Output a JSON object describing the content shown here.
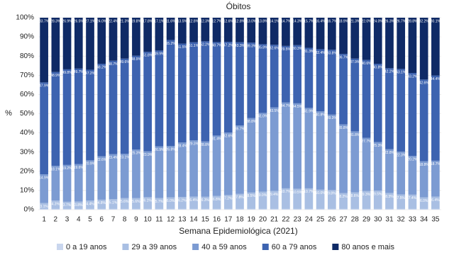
{
  "chart_data": {
    "type": "stacked_bar_100",
    "title": "Óbitos",
    "x_label": "Semana Epidemiológica (2021)",
    "y_label": "%",
    "categories": [
      "1",
      "2",
      "3",
      "4",
      "5",
      "6",
      "7",
      "8",
      "9",
      "10",
      "11",
      "12",
      "13",
      "14",
      "15",
      "16",
      "17",
      "18",
      "19",
      "20",
      "21",
      "22",
      "23",
      "24",
      "25",
      "26",
      "27",
      "28",
      "29",
      "30",
      "31",
      "32",
      "33",
      "34",
      "35"
    ],
    "ylim": [
      0,
      100
    ],
    "yticks": [
      {
        "value": 0,
        "label": "0%"
      },
      {
        "value": 10,
        "label": "10%"
      },
      {
        "value": 20,
        "label": "20%"
      },
      {
        "value": 30,
        "label": "30%"
      },
      {
        "value": 40,
        "label": "40%"
      },
      {
        "value": 50,
        "label": "50%"
      },
      {
        "value": 60,
        "label": "60%"
      },
      {
        "value": 70,
        "label": "70%"
      },
      {
        "value": 80,
        "label": "80%"
      },
      {
        "value": 90,
        "label": "90%"
      },
      {
        "value": 100,
        "label": "100%"
      }
    ],
    "series": [
      {
        "name": "0 a 19 anos",
        "color": "#c9d6ee",
        "values": [
          0.4,
          0.4,
          0.4,
          0.4,
          0.4,
          0.4,
          0.4,
          0.4,
          0.4,
          0.4,
          0.4,
          0.4,
          0.4,
          0.4,
          0.4,
          0.4,
          0.4,
          0.4,
          0.4,
          0.4,
          0.4,
          0.4,
          0.4,
          0.4,
          0.4,
          0.4,
          0.4,
          0.4,
          0.4,
          0.4,
          0.4,
          0.4,
          0.4,
          0.4,
          0.4
        ]
      },
      {
        "name": "29 a 39 anos",
        "color": "#a9bfe3",
        "values": [
          3.1,
          4.3,
          3.7,
          3.8,
          4.4,
          4.8,
          5.1,
          5.6,
          5.6,
          6.1,
          5.7,
          6.0,
          6.2,
          6.4,
          6.3,
          6.8,
          7.2,
          7.8,
          8.5,
          9.0,
          9.4,
          10.7,
          10.5,
          10.7,
          10.0,
          9.8,
          8.2,
          8.6,
          9.3,
          9.5,
          8.3,
          7.5,
          7.4,
          6.0,
          6.4
        ],
        "value_labels": [
          "3.1%",
          "4.3%",
          "3.7%",
          "3.8%",
          "4.4%",
          "4.8%",
          "5.1%",
          "5.6%",
          "5.6%",
          "6.1%",
          "5.7%",
          "6.0%",
          "6.2%",
          "6.4%",
          "6.3%",
          "6.8%",
          "7.2%",
          "7.8%",
          "8.5%",
          "9.0%",
          "9.4%",
          "10.7%",
          "10.5%",
          "10.7%",
          "10.0%",
          "9.8%",
          "8.2%",
          "8.6%",
          "9.3%",
          "9.5%",
          "8.3%",
          "7.5%",
          "7.4%",
          "6.0%",
          "6.4%"
        ]
      },
      {
        "name": "40 a 59 anos",
        "color": "#7c9bd2",
        "values": [
          14.9,
          18.1,
          19.2,
          19.6,
          20.9,
          22.6,
          23.4,
          23.1,
          25.3,
          23.9,
          26.9,
          26.8,
          28.4,
          29.3,
          28.8,
          31.4,
          32.6,
          35.7,
          38.8,
          41.0,
          43.5,
          44.7,
          44.5,
          41.9,
          40.8,
          39.3,
          35.8,
          31.8,
          27.7,
          25.3,
          22.8,
          22.3,
          20.2,
          18.8,
          18.7
        ],
        "value_labels": [
          "14.9%",
          "18.1%",
          "19.2%",
          "19.6%",
          "20.9%",
          "22.6%",
          "23.4%",
          "23.1%",
          "25.3%",
          "23.9%",
          "26.9%",
          "26.8%",
          "28.4%",
          "29.3%",
          "28.8%",
          "31.4%",
          "32.6%",
          "35.7%",
          "38.8%",
          "41.0%",
          "43.5%",
          "44.7%",
          "44.5%",
          "41.9%",
          "40.8%",
          "39.3%",
          "35.8%",
          "31.8%",
          "27.7%",
          "25.3%",
          "22.8%",
          "22.3%",
          "20.2%",
          "18.8%",
          "18.7%"
        ]
      },
      {
        "name": "60 a 79 anos",
        "color": "#3d63b0",
        "values": [
          47.9,
          48.9,
          49.8,
          49.7,
          47.2,
          48.2,
          48.7,
          49.6,
          48.9,
          51.8,
          49.9,
          55.2,
          51.5,
          51.1,
          52.2,
          48.7,
          47.2,
          43.3,
          39.3,
          35.8,
          32.6,
          29.5,
          30.3,
          31.3,
          32.4,
          33.8,
          36.7,
          37.9,
          40.6,
          40.8,
          42.2,
          43.1,
          43.2,
          42.6,
          44.4
        ],
        "value_labels": [
          "47.9%",
          "48.9%",
          "49.8%",
          "49.7%",
          "47.2%",
          "48.2%",
          "48.7%",
          "49.6%",
          "48.9%",
          "51.8%",
          "49.9%",
          "55.2%",
          "51.5%",
          "51.1%",
          "52.2%",
          "48.7%",
          "47.2%",
          "43.3%",
          "39.3%",
          "35.8%",
          "32.6%",
          "29.5%",
          "30.3%",
          "31.3%",
          "32.4%",
          "33.8%",
          "36.7%",
          "37.9%",
          "40.6%",
          "40.8%",
          "42.2%",
          "43.1%",
          "43.2%",
          "42.6%",
          "44.4%"
        ]
      },
      {
        "name": "80 anos e mais",
        "color": "#0f2a66",
        "values": [
          33.7,
          28.3,
          26.9,
          26.5,
          27.1,
          24.0,
          22.4,
          21.3,
          19.8,
          17.8,
          17.1,
          11.6,
          13.5,
          12.8,
          12.3,
          12.7,
          12.6,
          12.8,
          13.0,
          13.8,
          14.1,
          14.7,
          14.3,
          15.7,
          16.4,
          16.7,
          18.9,
          21.3,
          22.0,
          24.0,
          26.3,
          26.7,
          28.8,
          32.2,
          30.1
        ],
        "value_labels": [
          "33.7%",
          "28.3%",
          "26.9%",
          "26.5%",
          "27.1%",
          "24.0%",
          "22.4%",
          "21.3%",
          "19.8%",
          "17.8%",
          "17.1%",
          "11.6%",
          "13.5%",
          "12.8%",
          "12.3%",
          "12.7%",
          "12.6%",
          "12.8%",
          "13.0%",
          "13.8%",
          "14.1%",
          "14.7%",
          "14.3%",
          "15.7%",
          "16.4%",
          "16.7%",
          "18.9%",
          "21.3%",
          "22.0%",
          "24.0%",
          "26.3%",
          "26.7%",
          "28.8%",
          "32.2%",
          "30.1%"
        ]
      }
    ],
    "grid": true,
    "legend": "bottom"
  }
}
